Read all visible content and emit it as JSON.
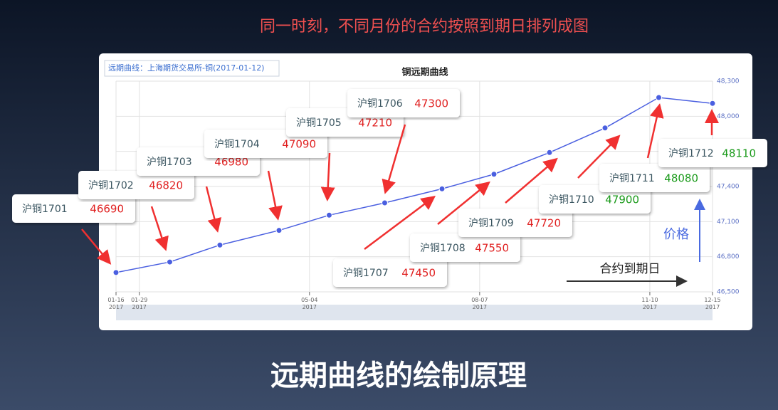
{
  "slide": {
    "heading": "同一时刻，不同月份的合约按照到期日排列成图",
    "title": "远期曲线的绘制原理"
  },
  "chart_data": {
    "type": "line",
    "title": "铜远期曲线",
    "subtitle": "远期曲线：上海期货交易所-铜(2017-01-12)",
    "x": [
      "2017-01-16",
      "2017-02-15",
      "2017-03-15",
      "2017-04-17",
      "2017-05-15",
      "2017-06-15",
      "2017-07-17",
      "2017-08-15",
      "2017-09-15",
      "2017-10-16",
      "2017-11-15",
      "2017-12-15"
    ],
    "series": [
      {
        "name": "铜",
        "color": "#4a5fe0",
        "values": [
          46665,
          46755,
          46900,
          47025,
          47155,
          47260,
          47380,
          47505,
          47690,
          47900,
          48160,
          48110
        ]
      }
    ],
    "xlim": [
      "2017-01-16",
      "2017-12-15"
    ],
    "xticks": [
      {
        "value": "2017-01-16",
        "label": "01-16\n2017"
      },
      {
        "value": "2017-01-29",
        "label": "01-29\n2017"
      },
      {
        "value": "2017-05-04",
        "label": "05-04\n2017"
      },
      {
        "value": "2017-08-07",
        "label": "08-07\n2017"
      },
      {
        "value": "2017-11-10",
        "label": "11-10\n2017"
      },
      {
        "value": "2017-12-15",
        "label": "12-15\n2017"
      }
    ],
    "ylim": [
      46500,
      48300
    ],
    "yticks": [
      {
        "value": 46500,
        "label": "46,500"
      },
      {
        "value": 46800,
        "label": "46,800"
      },
      {
        "value": 47100,
        "label": "47,100"
      },
      {
        "value": 47400,
        "label": "47,400"
      },
      {
        "value": 47700,
        "label": "47,700"
      },
      {
        "value": 48000,
        "label": "48,000"
      },
      {
        "value": 48300,
        "label": "48,300"
      }
    ],
    "grid": true,
    "callouts": [
      {
        "name": "沪铜1701",
        "value": 46690,
        "color": "#e02020"
      },
      {
        "name": "沪铜1702",
        "value": 46820,
        "color": "#e02020"
      },
      {
        "name": "沪铜1703",
        "value": 46980,
        "color": "#e02020"
      },
      {
        "name": "沪铜1704",
        "value": 47090,
        "color": "#e02020"
      },
      {
        "name": "沪铜1705",
        "value": 47210,
        "color": "#e02020"
      },
      {
        "name": "沪铜1706",
        "value": 47300,
        "color": "#e02020"
      },
      {
        "name": "沪铜1707",
        "value": 47450,
        "color": "#e02020"
      },
      {
        "name": "沪铜1708",
        "value": 47550,
        "color": "#e02020"
      },
      {
        "name": "沪铜1709",
        "value": 47720,
        "color": "#e02020"
      },
      {
        "name": "沪铜1710",
        "value": 47900,
        "color": "#1a9a1a"
      },
      {
        "name": "沪铜1711",
        "value": 48080,
        "color": "#1a9a1a"
      },
      {
        "name": "沪铜1712",
        "value": 48110,
        "color": "#1a9a1a"
      }
    ],
    "annotations": {
      "x_arrow": "合约到期日",
      "y_arrow": "价格"
    }
  }
}
